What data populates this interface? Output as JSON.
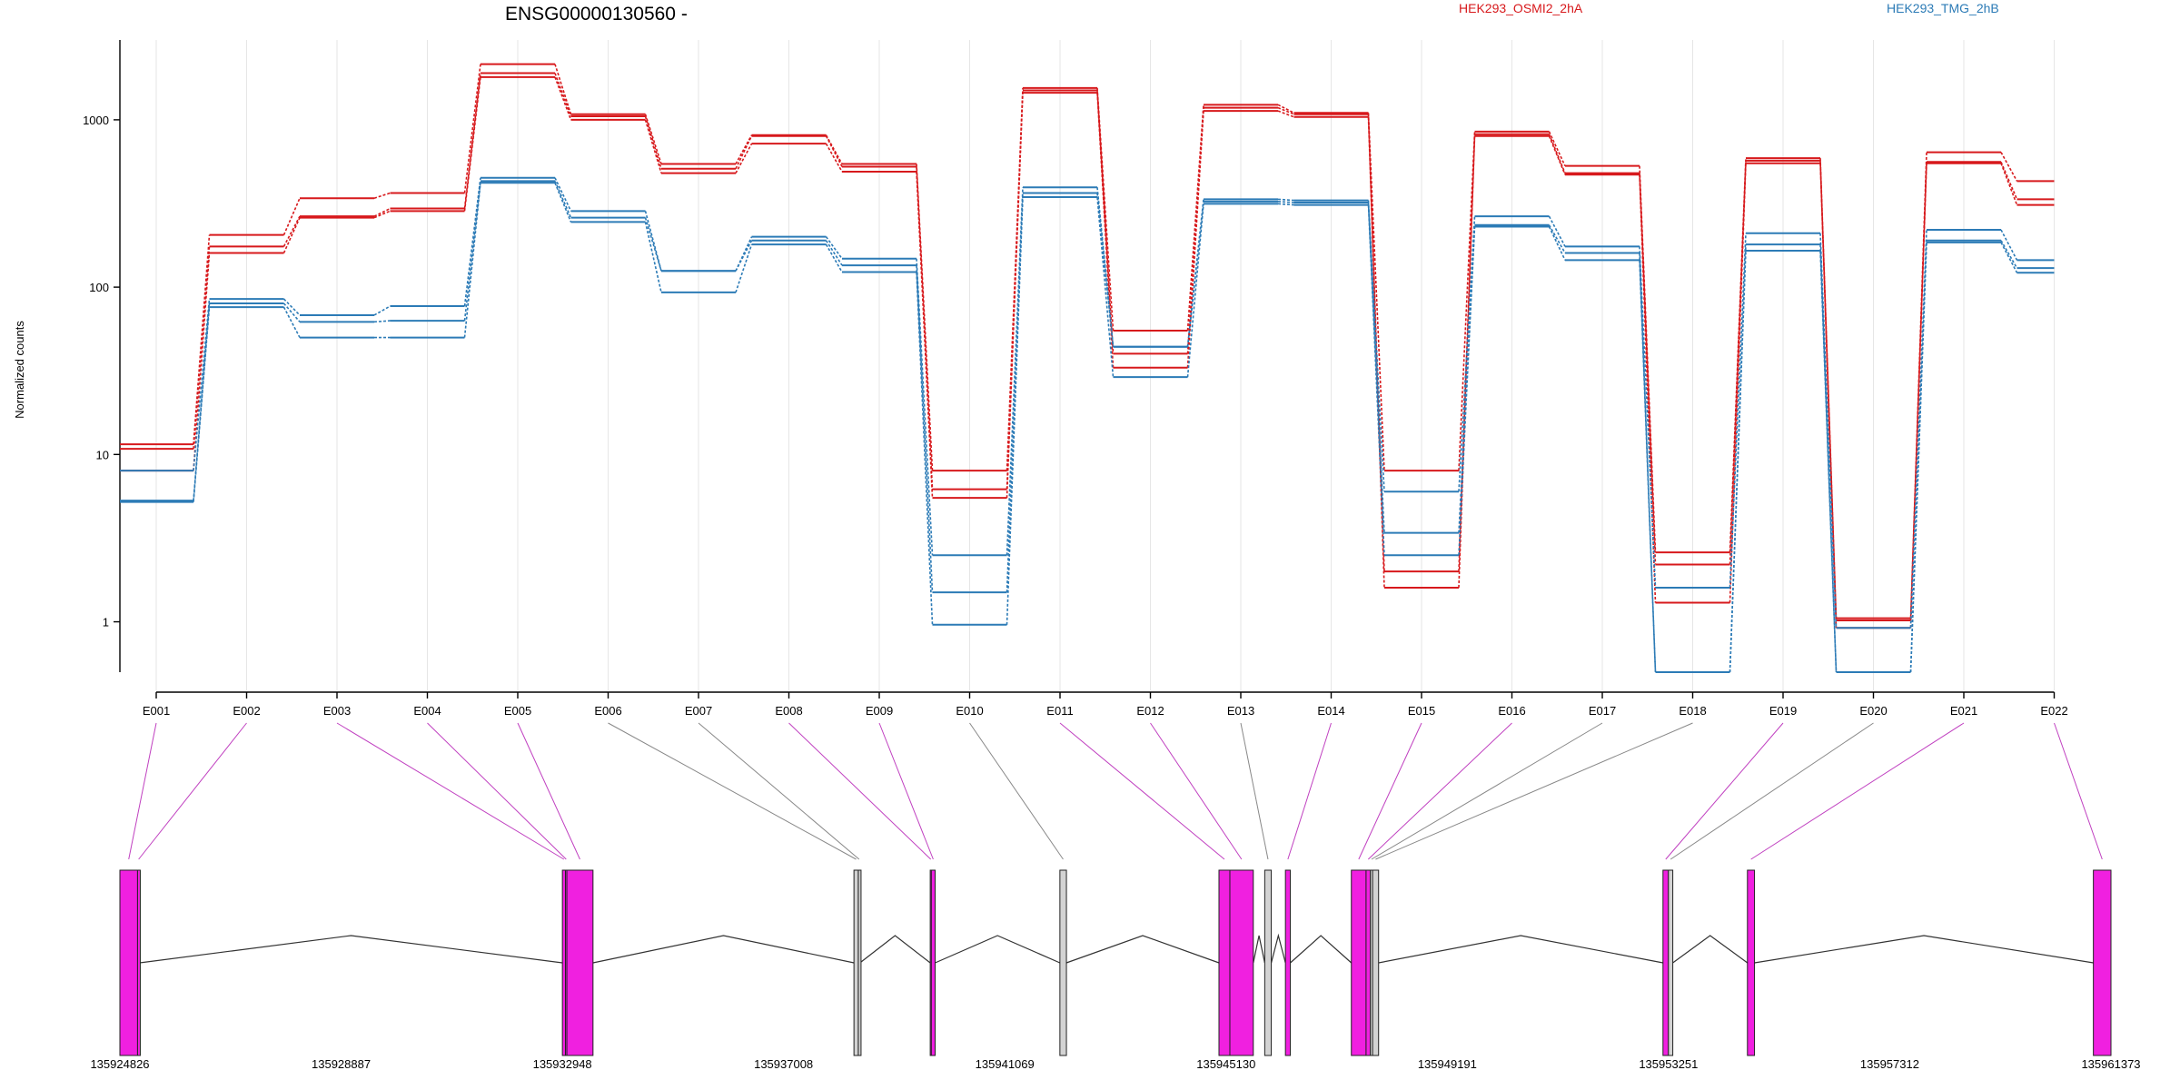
{
  "chart_data": {
    "type": "line",
    "title": "ENSG00000130560 -",
    "ylabel": "Normalized counts",
    "yscale": "log",
    "ylim": [
      0.5,
      3000
    ],
    "yticks": [
      {
        "value": 1,
        "label": "1"
      },
      {
        "value": 10,
        "label": "10"
      },
      {
        "value": 100,
        "label": "100"
      },
      {
        "value": 1000,
        "label": "1000"
      }
    ],
    "grid": "vertical",
    "categories": [
      "E001",
      "E002",
      "E003",
      "E004",
      "E005",
      "E006",
      "E007",
      "E008",
      "E009",
      "E010",
      "E011",
      "E012",
      "E013",
      "E014",
      "E015",
      "E016",
      "E017",
      "E018",
      "E019",
      "E020",
      "E021",
      "E022"
    ],
    "groups": [
      {
        "name": "HEK293_OSMI2_2hA",
        "color": "#d7191c"
      },
      {
        "name": "HEK293_TMG_2hB",
        "color": "#2c7bb6"
      }
    ],
    "series": [
      {
        "group": 0,
        "values": [
          11.5,
          205,
          340,
          365,
          2150,
          1080,
          545,
          810,
          545,
          8,
          1550,
          55,
          1230,
          1100,
          8,
          850,
          530,
          2.6,
          590,
          1.05,
          640,
          430
        ]
      },
      {
        "group": 0,
        "values": [
          10.8,
          175,
          265,
          295,
          1900,
          1050,
          510,
          800,
          525,
          6.2,
          1500,
          40,
          1180,
          1080,
          2,
          820,
          480,
          2.2,
          570,
          1.02,
          560,
          335
        ]
      },
      {
        "group": 0,
        "values": [
          8,
          160,
          260,
          285,
          1800,
          1000,
          480,
          720,
          490,
          5.5,
          1450,
          33,
          1130,
          1040,
          1.6,
          800,
          470,
          1.3,
          550,
          0.92,
          550,
          310
        ]
      },
      {
        "group": 1,
        "values": [
          8,
          85,
          68,
          77,
          450,
          285,
          125,
          200,
          148,
          2.5,
          395,
          44,
          335,
          330,
          6,
          265,
          175,
          1.6,
          210,
          0.92,
          220,
          145
        ]
      },
      {
        "group": 1,
        "values": [
          5.3,
          80,
          62,
          63,
          430,
          260,
          125,
          190,
          135,
          1.5,
          365,
          44,
          325,
          320,
          3.4,
          235,
          160,
          0.5,
          180,
          0.5,
          190,
          130
        ]
      },
      {
        "group": 1,
        "values": [
          5.2,
          76,
          50,
          50,
          420,
          245,
          93,
          180,
          123,
          0.96,
          345,
          29,
          315,
          310,
          2.5,
          230,
          145,
          0.5,
          165,
          0.5,
          185,
          122
        ]
      }
    ],
    "gene_model": {
      "coordinate_ticks": [
        "135924826",
        "135928887",
        "135932948",
        "135937008",
        "135941069",
        "135945130",
        "135949191",
        "135953251",
        "135957312",
        "135961373"
      ],
      "range": [
        135924826,
        135961373
      ],
      "colors": {
        "highlight": "#f020e0",
        "plain": "#d3d3d3",
        "intron": "#333333",
        "link_highlight": "#c040c0",
        "link_plain": "#888888"
      },
      "bins": [
        {
          "exon": "E001",
          "start": 135924826,
          "end": 135925150,
          "highlight": true
        },
        {
          "exon": "E002",
          "start": 135925150,
          "end": 135925190,
          "highlight": true
        },
        {
          "exon": "E003",
          "start": 135932948,
          "end": 135933005,
          "highlight": true
        },
        {
          "exon": "E004",
          "start": 135933005,
          "end": 135933030,
          "highlight": true
        },
        {
          "exon": "E005",
          "start": 135933030,
          "end": 135933510,
          "highlight": true
        },
        {
          "exon": "E006",
          "start": 135938300,
          "end": 135938380,
          "highlight": false
        },
        {
          "exon": "E007",
          "start": 135938380,
          "end": 135938410,
          "highlight": false
        },
        {
          "exon": "E008",
          "start": 135939700,
          "end": 135939720,
          "highlight": true
        },
        {
          "exon": "E009",
          "start": 135939720,
          "end": 135939790,
          "highlight": true
        },
        {
          "exon": "E010",
          "start": 135942080,
          "end": 135942200,
          "highlight": false
        },
        {
          "exon": "E011",
          "start": 135945000,
          "end": 135945200,
          "highlight": true
        },
        {
          "exon": "E012",
          "start": 135945200,
          "end": 135945630,
          "highlight": true
        },
        {
          "exon": "E013",
          "start": 135945840,
          "end": 135945960,
          "highlight": false
        },
        {
          "exon": "E014",
          "start": 135946220,
          "end": 135946310,
          "highlight": true
        },
        {
          "exon": "E015",
          "start": 135947430,
          "end": 135947700,
          "highlight": true
        },
        {
          "exon": "E016",
          "start": 135947700,
          "end": 135947780,
          "highlight": true
        },
        {
          "exon": "E017",
          "start": 135947780,
          "end": 135947820,
          "highlight": false
        },
        {
          "exon": "E018",
          "start": 135947820,
          "end": 135947930,
          "highlight": false
        },
        {
          "exon": "E019",
          "start": 135953150,
          "end": 135953250,
          "highlight": true
        },
        {
          "exon": "E020",
          "start": 135953250,
          "end": 135953330,
          "highlight": false
        },
        {
          "exon": "E021",
          "start": 135954700,
          "end": 135954830,
          "highlight": true
        },
        {
          "exon": "E022",
          "start": 135961050,
          "end": 135961373,
          "highlight": true
        }
      ],
      "introns": [
        [
          135925190,
          135932948
        ],
        [
          135933510,
          135938300
        ],
        [
          135938410,
          135939700
        ],
        [
          135939790,
          135942080
        ],
        [
          135942200,
          135945000
        ],
        [
          135945630,
          135945840
        ],
        [
          135945960,
          135946220
        ],
        [
          135946310,
          135947430
        ],
        [
          135947930,
          135953150
        ],
        [
          135953330,
          135954700
        ],
        [
          135954830,
          135961050
        ]
      ]
    }
  }
}
